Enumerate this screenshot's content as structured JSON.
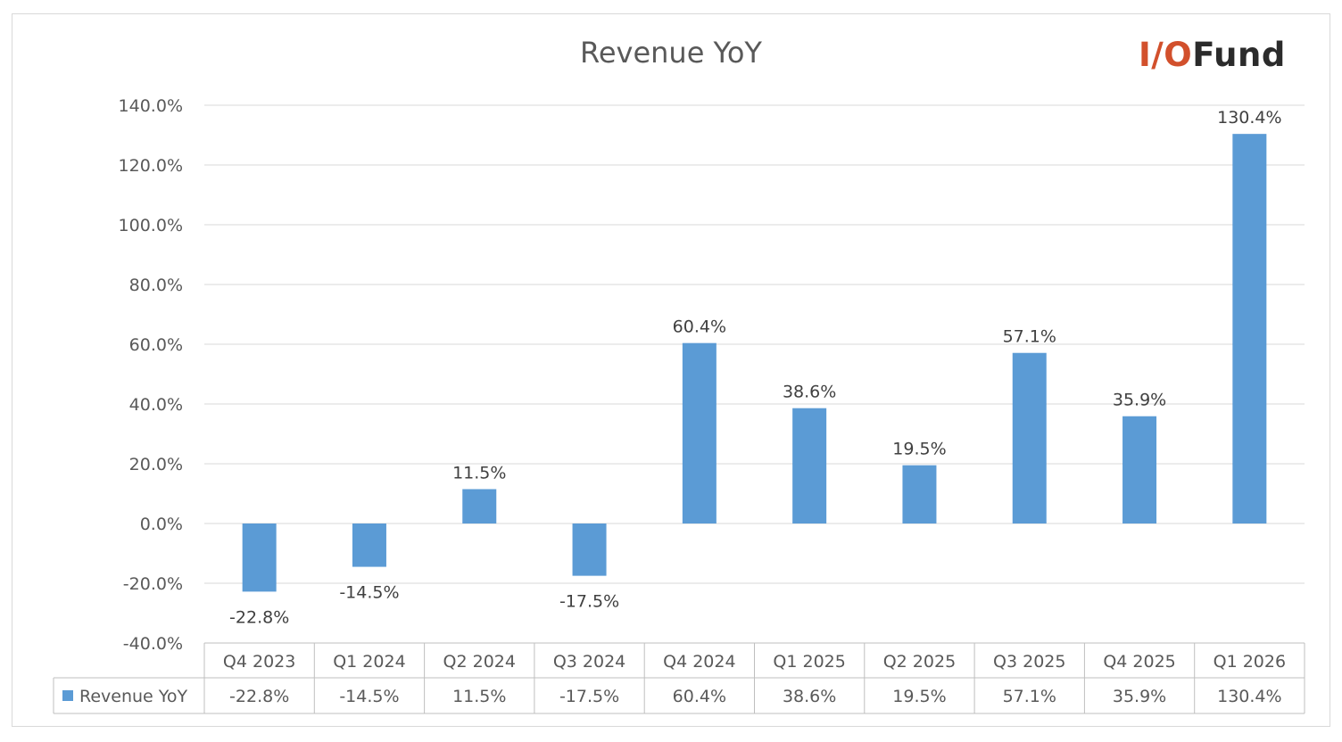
{
  "logo": {
    "io": "I/O",
    "fund": "Fund"
  },
  "chart_data": {
    "type": "bar",
    "title": "Revenue YoY",
    "categories": [
      "Q4 2023",
      "Q1 2024",
      "Q2 2024",
      "Q3 2024",
      "Q4 2024",
      "Q1 2025",
      "Q2 2025",
      "Q3 2025",
      "Q4 2025",
      "Q1 2026"
    ],
    "series": [
      {
        "name": "Revenue YoY",
        "color": "#5b9bd5",
        "values": [
          -22.8,
          -14.5,
          11.5,
          -17.5,
          60.4,
          38.6,
          19.5,
          57.1,
          35.9,
          130.4
        ],
        "labels": [
          "-22.8%",
          "-14.5%",
          "11.5%",
          "-17.5%",
          "60.4%",
          "38.6%",
          "19.5%",
          "57.1%",
          "35.9%",
          "130.4%"
        ]
      }
    ],
    "ylim": [
      -40,
      140
    ],
    "yticks": [
      140,
      120,
      100,
      80,
      60,
      40,
      20,
      0,
      -20,
      -40
    ],
    "ytick_labels": [
      "140.0%",
      "120.0%",
      "100.0%",
      "80.0%",
      "60.0%",
      "40.0%",
      "20.0%",
      "0.0%",
      "-20.0%",
      "-40.0%"
    ],
    "grid": true,
    "legend": "data-table",
    "xlabel": "",
    "ylabel": ""
  }
}
